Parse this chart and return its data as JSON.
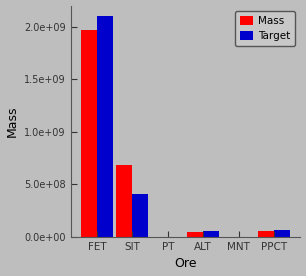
{
  "categories": [
    "FET",
    "SIT",
    "PT",
    "ALT",
    "MNT",
    "PPCT"
  ],
  "mass_values": [
    1970000000.0,
    680000000.0,
    3000000.0,
    50000000.0,
    2000000.0,
    58000000.0
  ],
  "target_values": [
    2100000000.0,
    410000000.0,
    3000000.0,
    62000000.0,
    2000000.0,
    68000000.0
  ],
  "mass_color": "#FF0000",
  "target_color": "#0000CC",
  "background_color": "#BEBEBE",
  "plot_bg_color": "#BEBEBE",
  "xlabel": "Ore",
  "ylabel": "Mass",
  "ylim": [
    0,
    2200000000.0
  ],
  "yticks": [
    0.0,
    500000000.0,
    1000000000.0,
    1500000000.0,
    2000000000.0
  ],
  "ytick_labels": [
    "0.0e+00",
    "5.0e+08",
    "1.0e+09",
    "1.5e+09",
    "2.0e+09"
  ],
  "legend_labels": [
    "Mass",
    "Target"
  ],
  "bar_width": 0.45,
  "title": ""
}
